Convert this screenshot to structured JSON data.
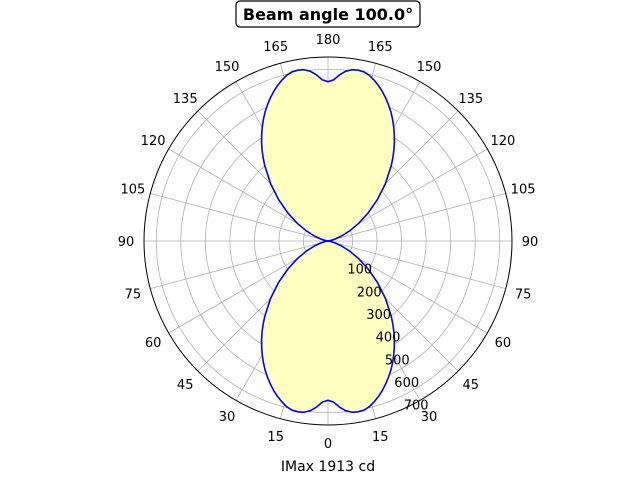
{
  "chart_data": {
    "type": "polar",
    "title": "Beam angle 100.0°",
    "xlabel": "IMax 1913 cd",
    "angle_tick_labels": [
      "0",
      "15",
      "30",
      "45",
      "60",
      "75",
      "90",
      "105",
      "120",
      "135",
      "150",
      "165",
      "180"
    ],
    "radial_tick_labels": [
      "100",
      "200",
      "300",
      "400",
      "500",
      "600",
      "700"
    ],
    "radial_ticks": [
      100,
      200,
      300,
      400,
      500,
      600,
      700
    ],
    "rlim": [
      0,
      750
    ],
    "grid": true,
    "series": [
      {
        "style": "blue outline, light yellow fill, symmetric about the vertical axis",
        "angles_deg": [
          0,
          2,
          4,
          6,
          8,
          10,
          12,
          14,
          16,
          18,
          20,
          22,
          24,
          26,
          28,
          30,
          32,
          34,
          36,
          38,
          40,
          45,
          50,
          55,
          60,
          65,
          70,
          75,
          80,
          85,
          90
        ],
        "values": [
          649,
          657,
          679,
          696,
          705,
          707,
          705,
          696,
          682,
          666,
          648,
          628,
          607,
          585,
          561,
          536,
          510,
          484,
          457,
          429,
          401,
          331,
          263,
          200,
          145,
          97,
          58,
          29,
          10,
          2,
          0
        ]
      }
    ],
    "colors": {
      "line": "#0000ff",
      "fill": "#ffffc0",
      "grid": "#b0b0b0"
    }
  }
}
